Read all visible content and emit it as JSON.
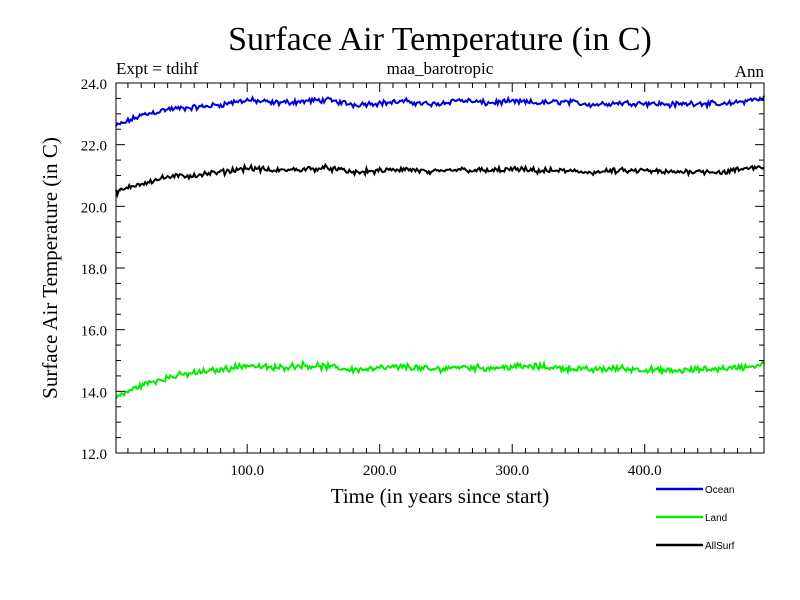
{
  "chart_data": {
    "type": "line",
    "title": "Surface Air Temperature (in C)",
    "subtitle_left": "Expt = tdihf",
    "subtitle_center": "maa_barotropic",
    "subtitle_right": "Ann",
    "xlabel": "Time (in years since start)",
    "ylabel": "Surface Air Temperature (in C)",
    "xlim": [
      1,
      490
    ],
    "ylim": [
      12.0,
      24.0
    ],
    "x_ticks": [
      100,
      200,
      300,
      400
    ],
    "x_tick_labels": [
      "100.0",
      "200.0",
      "300.0",
      "400.0"
    ],
    "y_ticks": [
      12,
      14,
      16,
      18,
      20,
      22,
      24
    ],
    "y_tick_labels": [
      "12.0",
      "14.0",
      "16.0",
      "18.0",
      "20.0",
      "22.0",
      "24.0"
    ],
    "series": [
      {
        "name": "Ocean",
        "color": "#0000dd",
        "x": [
          1,
          20,
          40,
          60,
          80,
          100,
          120,
          140,
          160,
          180,
          200,
          220,
          240,
          260,
          280,
          300,
          320,
          340,
          360,
          380,
          400,
          420,
          440,
          460,
          480,
          490
        ],
        "values": [
          22.6,
          22.95,
          23.15,
          23.2,
          23.3,
          23.45,
          23.35,
          23.4,
          23.45,
          23.3,
          23.35,
          23.4,
          23.3,
          23.45,
          23.35,
          23.4,
          23.35,
          23.4,
          23.3,
          23.35,
          23.35,
          23.3,
          23.35,
          23.3,
          23.45,
          23.5
        ]
      },
      {
        "name": "Land",
        "color": "#00ee00",
        "x": [
          1,
          20,
          40,
          60,
          80,
          100,
          120,
          140,
          160,
          180,
          200,
          220,
          240,
          260,
          280,
          300,
          320,
          340,
          360,
          380,
          400,
          420,
          440,
          460,
          480,
          490
        ],
        "values": [
          13.8,
          14.2,
          14.45,
          14.6,
          14.7,
          14.85,
          14.75,
          14.85,
          14.8,
          14.7,
          14.75,
          14.8,
          14.7,
          14.8,
          14.75,
          14.8,
          14.8,
          14.75,
          14.7,
          14.75,
          14.7,
          14.65,
          14.7,
          14.75,
          14.8,
          14.9
        ]
      },
      {
        "name": "AllSurf",
        "color": "#000000",
        "x": [
          1,
          20,
          40,
          60,
          80,
          100,
          120,
          140,
          160,
          180,
          200,
          220,
          240,
          260,
          280,
          300,
          320,
          340,
          360,
          380,
          400,
          420,
          440,
          460,
          480,
          490
        ],
        "values": [
          20.45,
          20.75,
          20.95,
          21.0,
          21.1,
          21.25,
          21.15,
          21.2,
          21.25,
          21.1,
          21.15,
          21.2,
          21.1,
          21.2,
          21.15,
          21.2,
          21.15,
          21.15,
          21.1,
          21.15,
          21.15,
          21.1,
          21.15,
          21.1,
          21.25,
          21.3
        ]
      }
    ]
  }
}
